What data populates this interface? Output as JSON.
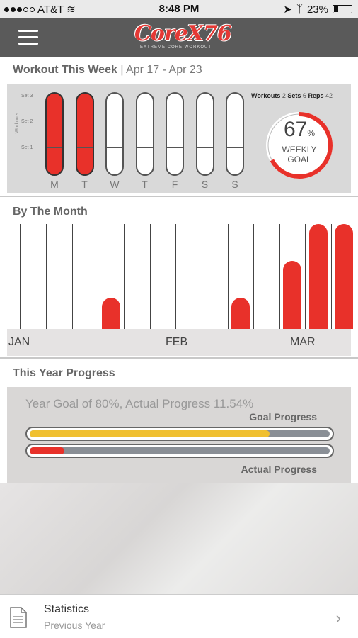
{
  "status_bar": {
    "carrier": "AT&T",
    "time": "8:48 PM",
    "battery": "23%"
  },
  "header": {
    "logo_text": "CoreX76",
    "logo_tagline": "EXTREME CORE WORKOUT"
  },
  "week": {
    "title": "Workout This Week",
    "range": "Apr 17 - Apr 23",
    "y_title": "Workouts",
    "set_labels": [
      "Set 3",
      "Set 2",
      "Set 1"
    ],
    "days": [
      {
        "label": "M",
        "done": true
      },
      {
        "label": "T",
        "done": true
      },
      {
        "label": "W",
        "done": false
      },
      {
        "label": "T",
        "done": false
      },
      {
        "label": "F",
        "done": false
      },
      {
        "label": "S",
        "done": false
      },
      {
        "label": "S",
        "done": false
      }
    ],
    "stats": {
      "workouts_label": "Workouts",
      "workouts": "2",
      "sets_label": "Sets",
      "sets": "6",
      "reps_label": "Reps",
      "reps": "42"
    },
    "goal": {
      "percent": "67",
      "percent_value": 0.67,
      "pct_sign": "%",
      "label_line1": "WEEKLY",
      "label_line2": "GOAL",
      "ring_color": "#e8312a"
    }
  },
  "month": {
    "title": "By The Month",
    "labels": [
      "JAN",
      "FEB",
      "MAR"
    ],
    "bar_color": "#e8312a"
  },
  "chart_data": {
    "type": "bar",
    "categories": [
      "JAN-1",
      "JAN-2",
      "JAN-3",
      "JAN-4",
      "JAN-5",
      "JAN-6",
      "FEB-1",
      "FEB-2",
      "FEB-3",
      "FEB-4",
      "FEB-5",
      "MAR-1",
      "MAR-2",
      "MAR-3"
    ],
    "values": [
      0,
      0,
      0,
      1,
      0,
      0,
      0,
      0,
      1,
      0,
      0,
      2.2,
      3.4,
      3.4
    ],
    "ylim": [
      0,
      3.4
    ]
  },
  "year": {
    "title": "This Year Progress",
    "goal_text": "Year Goal of 80%, Actual Progress 11.54%",
    "goal_label": "Goal Progress",
    "actual_label": "Actual Progress",
    "goal_value": 0.8,
    "actual_value": 0.1154
  },
  "bottom": {
    "title": "Statistics",
    "subtitle": "Previous Year"
  }
}
